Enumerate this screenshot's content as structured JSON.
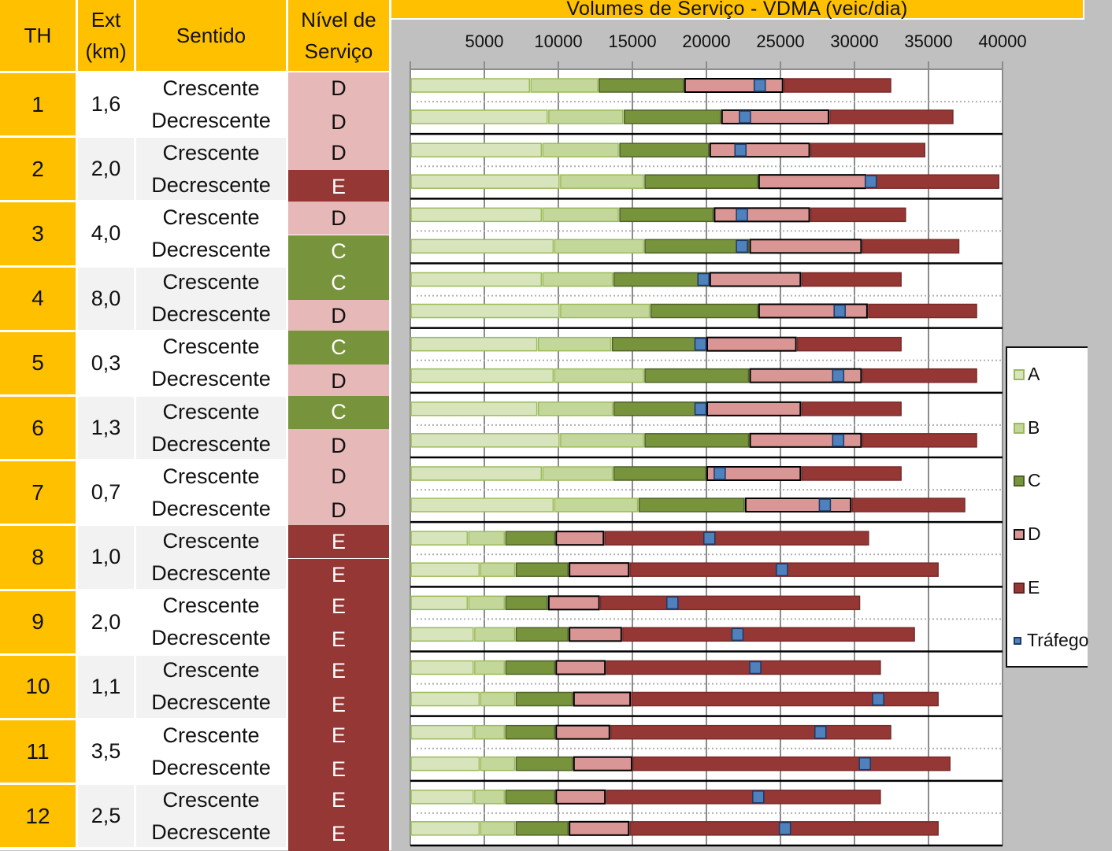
{
  "table": {
    "headers": {
      "th": "TH",
      "ext_line1": "Ext",
      "ext_line2": "(km)",
      "sentido": "Sentido",
      "nivel_line1": "Nível de",
      "nivel_line2": "Serviço"
    },
    "rows": [
      {
        "th": "1",
        "ext": "1,6",
        "sentidos": [
          "Crescente",
          "Decrescente"
        ],
        "niveis": [
          "D",
          "D"
        ]
      },
      {
        "th": "2",
        "ext": "2,0",
        "sentidos": [
          "Crescente",
          "Decrescente"
        ],
        "niveis": [
          "D",
          "E"
        ]
      },
      {
        "th": "3",
        "ext": "4,0",
        "sentidos": [
          "Crescente",
          "Decrescente"
        ],
        "niveis": [
          "D",
          "C"
        ]
      },
      {
        "th": "4",
        "ext": "8,0",
        "sentidos": [
          "Crescente",
          "Decrescente"
        ],
        "niveis": [
          "C",
          "D"
        ]
      },
      {
        "th": "5",
        "ext": "0,3",
        "sentidos": [
          "Crescente",
          "Decrescente"
        ],
        "niveis": [
          "C",
          "D"
        ]
      },
      {
        "th": "6",
        "ext": "1,3",
        "sentidos": [
          "Crescente",
          "Decrescente"
        ],
        "niveis": [
          "C",
          "D"
        ]
      },
      {
        "th": "7",
        "ext": "0,7",
        "sentidos": [
          "Crescente",
          "Decrescente"
        ],
        "niveis": [
          "D",
          "D"
        ]
      },
      {
        "th": "8",
        "ext": "1,0",
        "sentidos": [
          "Crescente",
          "Decrescente"
        ],
        "niveis": [
          "E",
          "E"
        ]
      },
      {
        "th": "9",
        "ext": "2,0",
        "sentidos": [
          "Crescente",
          "Decrescente"
        ],
        "niveis": [
          "E",
          "E"
        ]
      },
      {
        "th": "10",
        "ext": "1,1",
        "sentidos": [
          "Crescente",
          "Decrescente"
        ],
        "niveis": [
          "E",
          "E"
        ]
      },
      {
        "th": "11",
        "ext": "3,5",
        "sentidos": [
          "Crescente",
          "Decrescente"
        ],
        "niveis": [
          "E",
          "E"
        ]
      },
      {
        "th": "12",
        "ext": "2,5",
        "sentidos": [
          "Crescente",
          "Decrescente"
        ],
        "niveis": [
          "E",
          "E"
        ]
      }
    ]
  },
  "colors": {
    "header": "#ffc000",
    "A": "#d8e4bc",
    "B": "#c4d79b",
    "C": "#77933c",
    "D": "#e6b8b7",
    "D_bar": "#da9694",
    "E": "#953735",
    "traffic": "#4f81bd",
    "row_alt": "#f2f2f2"
  },
  "chart_data": {
    "type": "bar",
    "orientation": "horizontal-stacked",
    "title": "Volumes de Serviço - VDMA (veic/dia)",
    "xlim": [
      0,
      40000
    ],
    "xticks": [
      "5000",
      "10000",
      "15000",
      "20000",
      "25000",
      "30000",
      "35000",
      "40000"
    ],
    "xtick_values": [
      5000,
      10000,
      15000,
      20000,
      25000,
      30000,
      35000,
      40000
    ],
    "grid": true,
    "legend_position": "right",
    "legend": [
      "A",
      "B",
      "C",
      "D",
      "E",
      "Tráfego"
    ],
    "value_meaning": "cumulative upper limit of each service level (A,B,C,D,E) and traffic marker (Tráfego)",
    "bars": [
      {
        "th": "1",
        "sentido": "Crescente",
        "A": 8100,
        "B": 12700,
        "C": 18500,
        "D": 25200,
        "E": 32500,
        "trafego": 23600
      },
      {
        "th": "1",
        "sentido": "Decrescente",
        "A": 9300,
        "B": 14400,
        "C": 21000,
        "D": 28300,
        "E": 36700,
        "trafego": 22600
      },
      {
        "th": "2",
        "sentido": "Crescente",
        "A": 8900,
        "B": 14100,
        "C": 20200,
        "D": 27000,
        "E": 34800,
        "trafego": 22300
      },
      {
        "th": "2",
        "sentido": "Decrescente",
        "A": 10100,
        "B": 15800,
        "C": 23500,
        "D": 30800,
        "E": 39800,
        "trafego": 31100
      },
      {
        "th": "3",
        "sentido": "Crescente",
        "A": 8900,
        "B": 14100,
        "C": 20500,
        "D": 27000,
        "E": 33500,
        "trafego": 22400
      },
      {
        "th": "3",
        "sentido": "Decrescente",
        "A": 9700,
        "B": 15800,
        "C": 22900,
        "D": 30500,
        "E": 37100,
        "trafego": 22400
      },
      {
        "th": "4",
        "sentido": "Crescente",
        "A": 8900,
        "B": 13700,
        "C": 20200,
        "D": 26400,
        "E": 33200,
        "trafego": 19800
      },
      {
        "th": "4",
        "sentido": "Decrescente",
        "A": 10100,
        "B": 16200,
        "C": 23500,
        "D": 30900,
        "E": 38300,
        "trafego": 29000
      },
      {
        "th": "5",
        "sentido": "Crescente",
        "A": 8600,
        "B": 13600,
        "C": 20000,
        "D": 26100,
        "E": 33200,
        "trafego": 19600
      },
      {
        "th": "5",
        "sentido": "Decrescente",
        "A": 9700,
        "B": 15800,
        "C": 22900,
        "D": 30500,
        "E": 38300,
        "trafego": 28900
      },
      {
        "th": "6",
        "sentido": "Crescente",
        "A": 8600,
        "B": 13700,
        "C": 20000,
        "D": 26400,
        "E": 33200,
        "trafego": 19600
      },
      {
        "th": "6",
        "sentido": "Decrescente",
        "A": 10100,
        "B": 15800,
        "C": 22900,
        "D": 30500,
        "E": 38300,
        "trafego": 28900
      },
      {
        "th": "7",
        "sentido": "Crescente",
        "A": 8900,
        "B": 13700,
        "C": 20000,
        "D": 26400,
        "E": 33200,
        "trafego": 20900
      },
      {
        "th": "7",
        "sentido": "Decrescente",
        "A": 9700,
        "B": 15400,
        "C": 22600,
        "D": 29800,
        "E": 37500,
        "trafego": 28000
      },
      {
        "th": "8",
        "sentido": "Crescente",
        "A": 3900,
        "B": 6400,
        "C": 9800,
        "D": 13100,
        "E": 31000,
        "trafego": 20200
      },
      {
        "th": "8",
        "sentido": "Decrescente",
        "A": 4700,
        "B": 7100,
        "C": 10700,
        "D": 14800,
        "E": 35700,
        "trafego": 25100
      },
      {
        "th": "9",
        "sentido": "Crescente",
        "A": 3900,
        "B": 6400,
        "C": 9300,
        "D": 12800,
        "E": 30400,
        "trafego": 17700
      },
      {
        "th": "9",
        "sentido": "Decrescente",
        "A": 4300,
        "B": 7100,
        "C": 10700,
        "D": 14300,
        "E": 34100,
        "trafego": 22100
      },
      {
        "th": "10",
        "sentido": "Crescente",
        "A": 4300,
        "B": 6400,
        "C": 9800,
        "D": 13200,
        "E": 31800,
        "trafego": 23300
      },
      {
        "th": "10",
        "sentido": "Decrescente",
        "A": 4700,
        "B": 7100,
        "C": 11000,
        "D": 14900,
        "E": 35700,
        "trafego": 31600
      },
      {
        "th": "11",
        "sentido": "Crescente",
        "A": 4300,
        "B": 6400,
        "C": 9800,
        "D": 13500,
        "E": 32500,
        "trafego": 27700
      },
      {
        "th": "11",
        "sentido": "Decrescente",
        "A": 4700,
        "B": 7100,
        "C": 11000,
        "D": 15000,
        "E": 36500,
        "trafego": 30700
      },
      {
        "th": "12",
        "sentido": "Crescente",
        "A": 4300,
        "B": 6400,
        "C": 9800,
        "D": 13200,
        "E": 31800,
        "trafego": 23500
      },
      {
        "th": "12",
        "sentido": "Decrescente",
        "A": 4700,
        "B": 7100,
        "C": 10700,
        "D": 14800,
        "E": 35700,
        "trafego": 25300
      }
    ]
  }
}
